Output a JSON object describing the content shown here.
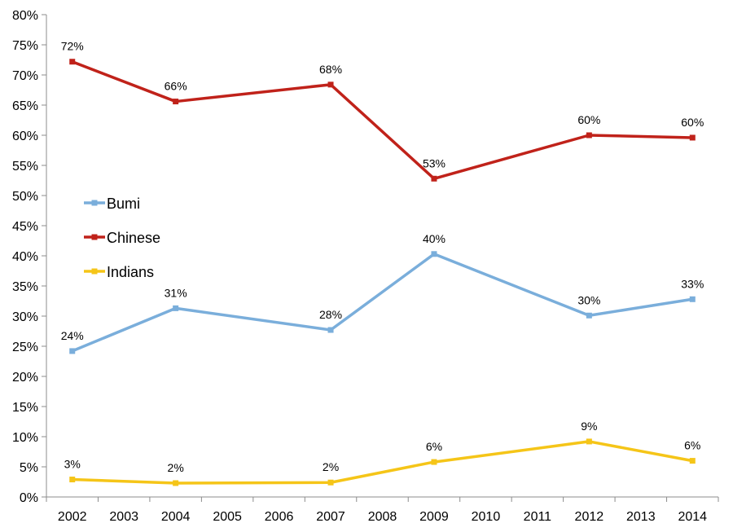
{
  "chart_data": {
    "type": "line",
    "categories": [
      "2002",
      "2003",
      "2004",
      "2005",
      "2006",
      "2007",
      "2008",
      "2009",
      "2010",
      "2011",
      "2012",
      "2013",
      "2014"
    ],
    "y_tick_labels": [
      "0%",
      "5%",
      "10%",
      "15%",
      "20%",
      "25%",
      "30%",
      "35%",
      "40%",
      "45%",
      "50%",
      "55%",
      "60%",
      "65%",
      "70%",
      "75%",
      "80%"
    ],
    "ylim": [
      0,
      80
    ],
    "y_unit": "%",
    "grid": false,
    "legend_position": "left-middle",
    "series": [
      {
        "name": "Bumi",
        "color": "#7aaedb",
        "points": [
          {
            "x": "2002",
            "y": 24.2,
            "label": "24%"
          },
          {
            "x": "2004",
            "y": 31.3,
            "label": "31%"
          },
          {
            "x": "2007",
            "y": 27.7,
            "label": "28%"
          },
          {
            "x": "2009",
            "y": 40.3,
            "label": "40%"
          },
          {
            "x": "2012",
            "y": 30.1,
            "label": "30%"
          },
          {
            "x": "2014",
            "y": 32.8,
            "label": "33%"
          }
        ]
      },
      {
        "name": "Chinese",
        "color": "#c0221a",
        "points": [
          {
            "x": "2002",
            "y": 72.2,
            "label": "72%"
          },
          {
            "x": "2004",
            "y": 65.6,
            "label": "66%"
          },
          {
            "x": "2007",
            "y": 68.4,
            "label": "68%"
          },
          {
            "x": "2009",
            "y": 52.8,
            "label": "53%"
          },
          {
            "x": "2012",
            "y": 60.0,
            "label": "60%"
          },
          {
            "x": "2014",
            "y": 59.6,
            "label": "60%"
          }
        ]
      },
      {
        "name": "Indians",
        "color": "#f5c518",
        "points": [
          {
            "x": "2002",
            "y": 2.9,
            "label": "3%"
          },
          {
            "x": "2004",
            "y": 2.3,
            "label": "2%"
          },
          {
            "x": "2007",
            "y": 2.4,
            "label": "2%"
          },
          {
            "x": "2009",
            "y": 5.8,
            "label": "6%"
          },
          {
            "x": "2012",
            "y": 9.2,
            "label": "9%"
          },
          {
            "x": "2014",
            "y": 6.0,
            "label": "6%"
          }
        ]
      }
    ]
  }
}
